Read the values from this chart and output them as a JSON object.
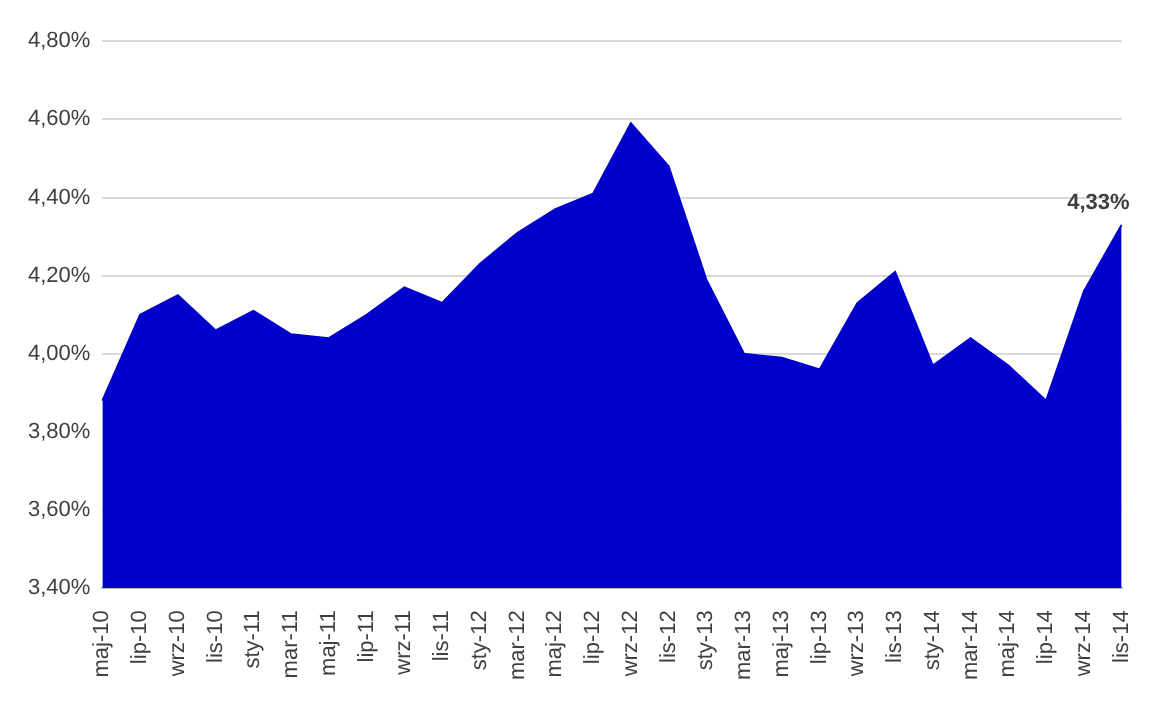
{
  "chart_data": {
    "type": "area",
    "categories": [
      "maj-10",
      "lip-10",
      "wrz-10",
      "lis-10",
      "sty-11",
      "mar-11",
      "maj-11",
      "lip-11",
      "wrz-11",
      "lis-11",
      "sty-12",
      "mar-12",
      "maj-12",
      "lip-12",
      "wrz-12",
      "lis-12",
      "sty-13",
      "mar-13",
      "maj-13",
      "lip-13",
      "wrz-13",
      "lis-13",
      "sty-14",
      "mar-14",
      "maj-14",
      "lip-14",
      "wrz-14",
      "lis-14"
    ],
    "series": [
      {
        "color": "#0000cc",
        "values": [
          3.88,
          4.1,
          4.15,
          4.06,
          4.11,
          4.05,
          4.04,
          4.1,
          4.17,
          4.13,
          4.23,
          4.31,
          4.37,
          4.41,
          4.59,
          4.48,
          4.19,
          4.0,
          3.99,
          3.96,
          4.13,
          4.21,
          3.97,
          4.04,
          3.97,
          3.88,
          4.16,
          4.33
        ]
      }
    ],
    "ylim": [
      3.4,
      4.8
    ],
    "yticks": [
      {
        "value": 3.4,
        "label": "3,40%"
      },
      {
        "value": 3.6,
        "label": "3,60%"
      },
      {
        "value": 3.8,
        "label": "3,80%"
      },
      {
        "value": 4.0,
        "label": "4,00%"
      },
      {
        "value": 4.2,
        "label": "4,20%"
      },
      {
        "value": 4.4,
        "label": "4,40%"
      },
      {
        "value": 4.6,
        "label": "4,60%"
      },
      {
        "value": 4.8,
        "label": "4,80%"
      }
    ],
    "grid": "y",
    "legend": false,
    "annotations": [
      {
        "text": "4,33%",
        "x": "lis-14",
        "y": 4.33
      }
    ]
  }
}
